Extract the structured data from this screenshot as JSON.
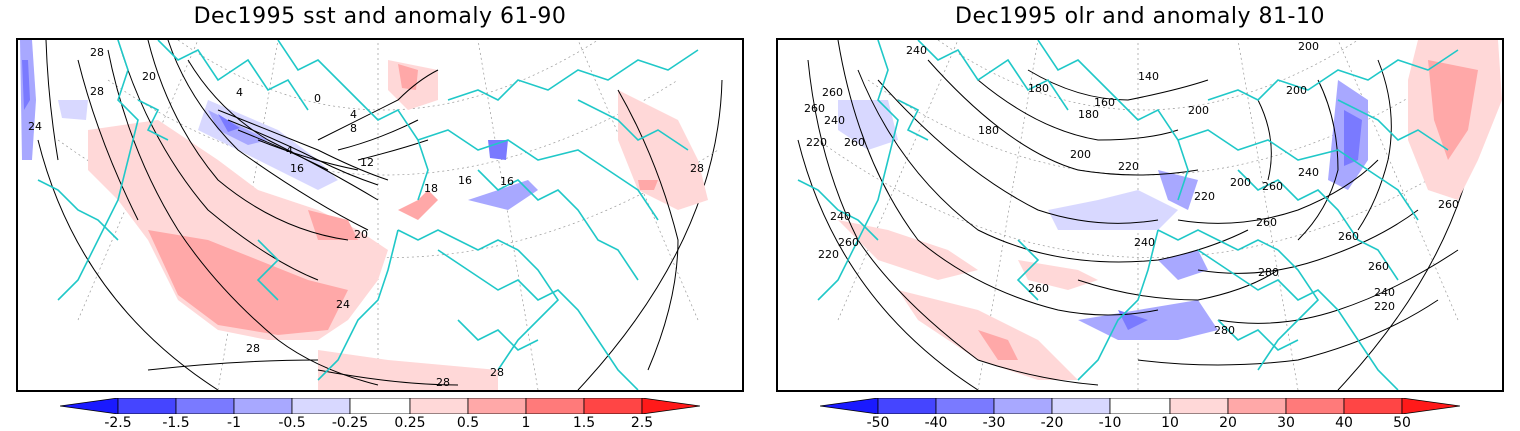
{
  "panels": [
    {
      "title": "Dec1995 sst and anomaly 61-90",
      "colorbar_labels": [
        "-2.5",
        "-1.5",
        "-1",
        "-0.5",
        "-0.25",
        "0.25",
        "0.5",
        "1",
        "1.5",
        "2.5"
      ],
      "contour_labels": [
        "28",
        "20",
        "24",
        "28",
        "0",
        "4",
        "4",
        "4",
        "8",
        "12",
        "16",
        "16",
        "18",
        "16",
        "20",
        "24",
        "28",
        "28",
        "28",
        "28"
      ]
    },
    {
      "title": "Dec1995 olr and anomaly 81-10",
      "colorbar_labels": [
        "-50",
        "-40",
        "-30",
        "-20",
        "-10",
        "10",
        "20",
        "30",
        "40",
        "50"
      ],
      "contour_labels": [
        "240",
        "200",
        "180",
        "140",
        "160",
        "180",
        "200",
        "260",
        "260",
        "240",
        "220",
        "260",
        "200",
        "220",
        "220",
        "200",
        "240",
        "260",
        "280",
        "260",
        "240",
        "260",
        "240",
        "260",
        "220",
        "200",
        "260",
        "280",
        "260",
        "240",
        "220",
        "260",
        "180"
      ]
    }
  ],
  "colors": {
    "coast": "#20c8c8",
    "neg": [
      "#1a1aff",
      "#4545ff",
      "#7a7aff",
      "#a8a8ff",
      "#d8d8ff"
    ],
    "pos": [
      "#ffd8d8",
      "#ffa8a8",
      "#ff7a7a",
      "#ff4545",
      "#ff1a1a"
    ]
  }
}
